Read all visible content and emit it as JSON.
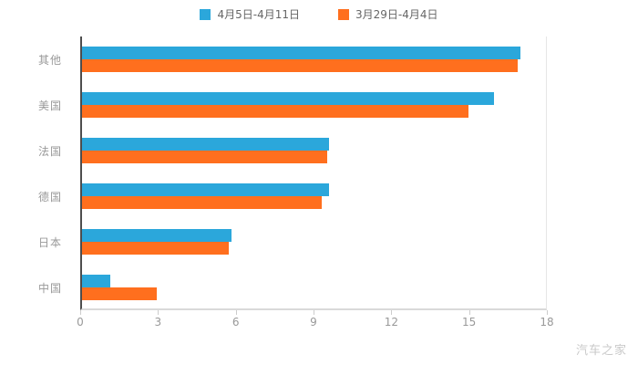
{
  "watermark": "汽车之家",
  "chart_data": {
    "type": "bar",
    "orientation": "horizontal",
    "title": "",
    "xlabel": "",
    "ylabel": "",
    "categories": [
      "其他",
      "美国",
      "法国",
      "德国",
      "日本",
      "中国"
    ],
    "series": [
      {
        "name": "4月5日-4月11日",
        "color": "#2BA7DB",
        "values": [
          17.0,
          16.0,
          9.6,
          9.6,
          5.8,
          1.1
        ]
      },
      {
        "name": "3月29日-4月4日",
        "color": "#FF6F1E",
        "values": [
          16.9,
          15.0,
          9.5,
          9.3,
          5.7,
          2.9
        ]
      }
    ],
    "xlim": [
      0,
      18
    ],
    "x_ticks": [
      0,
      3,
      6,
      9,
      12,
      15,
      18
    ],
    "legend_position": "top",
    "grid": false,
    "axis_colors": {
      "y_axis": "#4d4d4d",
      "x_axis": "#d9d9d9",
      "right_line": "#e6e6e6"
    },
    "text_colors": {
      "legend": "#666666",
      "labels": "#999999"
    }
  }
}
